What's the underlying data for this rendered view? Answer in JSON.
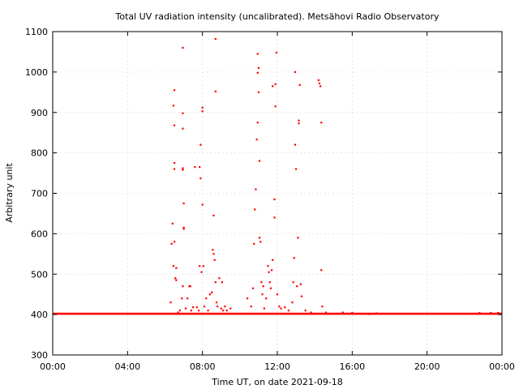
{
  "chart_data": {
    "type": "scatter",
    "title": "Total UV radiation intensity (uncalibrated). Metsähovi Radio Observatory",
    "xlabel": "Time UT, on date 2021-09-18",
    "ylabel": "Arbitrary unit",
    "x_unit": "hours UT",
    "xlim": [
      0,
      24
    ],
    "ylim": [
      300,
      1100
    ],
    "x_ticks": [
      0,
      4,
      8,
      12,
      16,
      20,
      24
    ],
    "x_tick_labels": [
      "00:00",
      "04:00",
      "08:00",
      "12:00",
      "16:00",
      "20:00",
      "00:00"
    ],
    "y_ticks": [
      300,
      400,
      500,
      600,
      700,
      800,
      900,
      1000,
      1100
    ],
    "y_tick_labels": [
      "300",
      "400",
      "500",
      "600",
      "700",
      "800",
      "900",
      "1000",
      "1100"
    ],
    "grid": true,
    "legend": "none",
    "marker_color": "#ff0000",
    "baseline": {
      "value": 402,
      "from": 0.0,
      "to": 24.0
    },
    "series": [
      {
        "values": [
          [
            6.3,
            430
          ],
          [
            6.35,
            575
          ],
          [
            6.4,
            625
          ],
          [
            6.45,
            520
          ],
          [
            6.5,
            580
          ],
          [
            6.5,
            760
          ],
          [
            6.5,
            775
          ],
          [
            6.5,
            955
          ],
          [
            6.45,
            917
          ],
          [
            6.5,
            868
          ],
          [
            6.55,
            490
          ],
          [
            6.6,
            485
          ],
          [
            6.6,
            515
          ],
          [
            6.7,
            405
          ],
          [
            6.8,
            410
          ],
          [
            6.9,
            440
          ],
          [
            6.95,
            470
          ],
          [
            6.95,
            860
          ],
          [
            6.95,
            898
          ],
          [
            6.95,
            1060
          ],
          [
            7.0,
            675
          ],
          [
            7.0,
            615
          ],
          [
            7.0,
            612
          ],
          [
            6.95,
            758
          ],
          [
            6.95,
            762
          ],
          [
            7.1,
            415
          ],
          [
            7.2,
            440
          ],
          [
            7.3,
            470
          ],
          [
            7.35,
            470
          ],
          [
            7.4,
            410
          ],
          [
            7.5,
            418
          ],
          [
            7.6,
            765
          ],
          [
            7.7,
            418
          ],
          [
            7.8,
            410
          ],
          [
            7.85,
            520
          ],
          [
            7.85,
            765
          ],
          [
            7.9,
            737
          ],
          [
            7.9,
            820
          ],
          [
            7.95,
            505
          ],
          [
            8.0,
            672
          ],
          [
            8.0,
            903
          ],
          [
            8.0,
            912
          ],
          [
            8.05,
            520
          ],
          [
            8.1,
            420
          ],
          [
            8.2,
            440
          ],
          [
            8.3,
            410
          ],
          [
            8.4,
            450
          ],
          [
            8.5,
            455
          ],
          [
            8.6,
            645
          ],
          [
            8.55,
            560
          ],
          [
            8.6,
            550
          ],
          [
            8.65,
            535
          ],
          [
            8.7,
            480
          ],
          [
            8.7,
            952
          ],
          [
            8.7,
            1082
          ],
          [
            8.75,
            430
          ],
          [
            8.8,
            420
          ],
          [
            8.9,
            490
          ],
          [
            9.0,
            415
          ],
          [
            9.05,
            480
          ],
          [
            9.1,
            410
          ],
          [
            9.2,
            420
          ],
          [
            9.3,
            410
          ],
          [
            9.5,
            415
          ],
          [
            10.4,
            440
          ],
          [
            10.6,
            420
          ],
          [
            10.7,
            465
          ],
          [
            10.75,
            575
          ],
          [
            10.8,
            660
          ],
          [
            10.85,
            710
          ],
          [
            10.9,
            833
          ],
          [
            10.95,
            875
          ],
          [
            10.95,
            998
          ],
          [
            11.0,
            1010
          ],
          [
            10.95,
            1045
          ],
          [
            11.0,
            950
          ],
          [
            11.05,
            780
          ],
          [
            11.05,
            590
          ],
          [
            11.1,
            580
          ],
          [
            11.15,
            480
          ],
          [
            11.2,
            450
          ],
          [
            11.25,
            470
          ],
          [
            11.3,
            415
          ],
          [
            11.4,
            440
          ],
          [
            11.5,
            520
          ],
          [
            11.55,
            505
          ],
          [
            11.6,
            480
          ],
          [
            11.65,
            465
          ],
          [
            11.7,
            510
          ],
          [
            11.75,
            535
          ],
          [
            11.75,
            965
          ],
          [
            11.85,
            640
          ],
          [
            11.85,
            685
          ],
          [
            11.9,
            915
          ],
          [
            11.9,
            970
          ],
          [
            11.95,
            1048
          ],
          [
            12.0,
            450
          ],
          [
            12.1,
            420
          ],
          [
            12.2,
            415
          ],
          [
            12.4,
            418
          ],
          [
            12.6,
            410
          ],
          [
            12.8,
            430
          ],
          [
            12.85,
            480
          ],
          [
            12.9,
            540
          ],
          [
            12.95,
            820
          ],
          [
            12.95,
            1000
          ],
          [
            13.0,
            760
          ],
          [
            13.05,
            470
          ],
          [
            13.1,
            590
          ],
          [
            13.15,
            880
          ],
          [
            13.15,
            873
          ],
          [
            13.2,
            968
          ],
          [
            13.25,
            475
          ],
          [
            13.3,
            445
          ],
          [
            13.5,
            410
          ],
          [
            13.8,
            405
          ],
          [
            14.2,
            980
          ],
          [
            14.25,
            972
          ],
          [
            14.3,
            965
          ],
          [
            14.35,
            875
          ],
          [
            14.35,
            510
          ],
          [
            14.4,
            420
          ],
          [
            14.6,
            405
          ],
          [
            15.5,
            405
          ],
          [
            16.0,
            404
          ],
          [
            16.9,
            401
          ],
          [
            17.3,
            403
          ],
          [
            22.8,
            404
          ],
          [
            23.4,
            404
          ],
          [
            23.8,
            404
          ]
        ]
      }
    ]
  }
}
